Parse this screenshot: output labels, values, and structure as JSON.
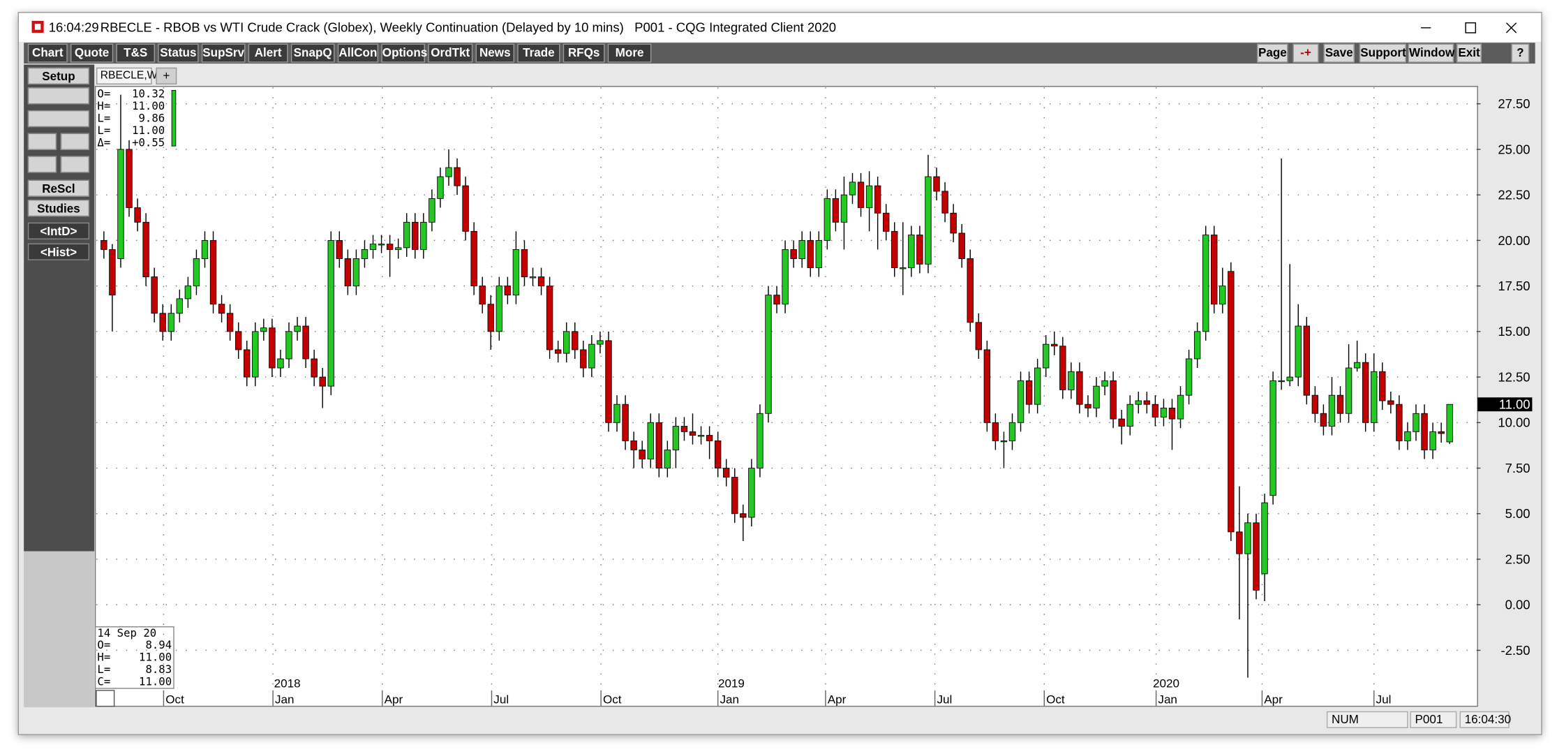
{
  "window": {
    "time": "16:04:29",
    "title": "RBECLE - RBOB vs WTI Crude Crack (Globex), Weekly Continuation (Delayed by 10 mins)   P001 - CQG Integrated Client 2020"
  },
  "toolbar": {
    "left": [
      "Chart",
      "Quote",
      "T&S",
      "Status",
      "SupSrv",
      "Alert",
      "SnapQ",
      "AllCon",
      "Options",
      "OrdTkt",
      "News",
      "Trade",
      "RFQs",
      "More"
    ],
    "right": [
      "Page",
      "-+",
      "Save",
      "Support",
      "Window",
      "Exit",
      "?"
    ]
  },
  "sidebar": [
    "Setup",
    "ReScl",
    "Studies",
    "<IntD>",
    "<Hist>"
  ],
  "tabs": [
    "RBECLE,W",
    "+"
  ],
  "info_top": [
    [
      "O=",
      "10.32"
    ],
    [
      "H=",
      "11.00"
    ],
    [
      "L=",
      "9.86"
    ],
    [
      "L=",
      "11.00"
    ],
    [
      "Δ=",
      "+0.55"
    ]
  ],
  "info_bottom": {
    "date": "14 Sep 20",
    "rows": [
      [
        "O=",
        "8.94"
      ],
      [
        "H=",
        "11.00"
      ],
      [
        "L=",
        "8.83"
      ],
      [
        "C=",
        "11.00"
      ]
    ]
  },
  "status": [
    "NUM",
    "P001",
    "16:04:30"
  ],
  "chart_data": {
    "type": "candlestick",
    "up_color": "#22c922",
    "down_color": "#c40000",
    "grid": true,
    "xlim": [
      -0.9,
      163.2
    ],
    "ylim": [
      -4.7,
      28.4
    ],
    "yticks": [
      {
        "value": 27.5,
        "label": "27.50"
      },
      {
        "value": 25,
        "label": "25.00"
      },
      {
        "value": 22.5,
        "label": "22.50"
      },
      {
        "value": 20,
        "label": "20.00"
      },
      {
        "value": 17.5,
        "label": "17.50"
      },
      {
        "value": 15,
        "label": "15.00"
      },
      {
        "value": 12.5,
        "label": "12.50"
      },
      {
        "value": 10,
        "label": "10.00"
      },
      {
        "value": 7.5,
        "label": "7.50"
      },
      {
        "value": 5,
        "label": "5.00"
      },
      {
        "value": 2.5,
        "label": "2.50"
      },
      {
        "value": 0,
        "label": "0.00"
      },
      {
        "value": -2.5,
        "label": "-2.50"
      }
    ],
    "xticks": [
      {
        "value": 7.1,
        "label": "Oct"
      },
      {
        "value": 20.1,
        "label": "Jan"
      },
      {
        "value": 33.1,
        "label": "Apr"
      },
      {
        "value": 46.1,
        "label": "Jul"
      },
      {
        "value": 59.1,
        "label": "Oct"
      },
      {
        "value": 73,
        "label": "Jan"
      },
      {
        "value": 85.8,
        "label": "Apr"
      },
      {
        "value": 98.8,
        "label": "Jul"
      },
      {
        "value": 111.8,
        "label": "Oct"
      },
      {
        "value": 125.1,
        "label": "Jan"
      },
      {
        "value": 137.7,
        "label": "Apr"
      },
      {
        "value": 151,
        "label": "Jul"
      }
    ],
    "year_labels": [
      {
        "value": 21.8,
        "label": "2018"
      },
      {
        "value": 74.6,
        "label": "2019"
      },
      {
        "value": 126.3,
        "label": "2020"
      }
    ],
    "last_price": {
      "value": 11,
      "label": "11.00"
    },
    "open": [
      20,
      19.5,
      19,
      25,
      21.8,
      21,
      18,
      16,
      15,
      16,
      16.8,
      17.5,
      19,
      20,
      16.5,
      16,
      15,
      14,
      12.5,
      15,
      15.2,
      13,
      13.5,
      15,
      15.3,
      13.5,
      12.5,
      12,
      20,
      19,
      17.5,
      19,
      19.5,
      19.8,
      19.8,
      19.5,
      19.6,
      21,
      19.5,
      21,
      22.3,
      23.5,
      24,
      23,
      20.5,
      17.5,
      16.5,
      15,
      17.5,
      17,
      19.5,
      18,
      18,
      17.5,
      14,
      13.8,
      15,
      14,
      13,
      14.3,
      14.5,
      10,
      11,
      9,
      8.5,
      8,
      10,
      7.5,
      8.5,
      9.8,
      9.5,
      9.3,
      9.3,
      9,
      7.5,
      7,
      5,
      4.8,
      7.5,
      10.5,
      17,
      16.5,
      19.5,
      19,
      20,
      18.5,
      20,
      22.3,
      21,
      22.5,
      23.2,
      21.8,
      23,
      21.5,
      20.5,
      18.5,
      18.5,
      20.3,
      18.7,
      23.5,
      22.7,
      21.5,
      20.4,
      19,
      15.5,
      14,
      10,
      9,
      9,
      10,
      12.3,
      11,
      13,
      14.3,
      14.2,
      11.8,
      12.8,
      11,
      10.8,
      12,
      12.3,
      10.2,
      9.8,
      11,
      11.2,
      11,
      10.3,
      10.8,
      10.2,
      11.5,
      13.5,
      15,
      20.3,
      16.5,
      18.3,
      4,
      2.8,
      4.5,
      1.7,
      6,
      12.3,
      12.3,
      12.5,
      15.3,
      11.5,
      10.5,
      9.8,
      11.5,
      10.5,
      13,
      13.3,
      10,
      12.8,
      11.2,
      11,
      9,
      9.5,
      10.5,
      8.5,
      9.5,
      8.94
    ],
    "high": [
      20.5,
      19.8,
      28,
      25.5,
      22.3,
      21.5,
      18.5,
      16.5,
      16.5,
      17.3,
      18,
      19.5,
      20.5,
      20.5,
      17,
      16.5,
      15.5,
      14.5,
      15.5,
      15.7,
      15.7,
      14,
      15.5,
      15.8,
      15.8,
      14,
      13,
      20.5,
      20.5,
      19.5,
      19.5,
      20,
      20.3,
      20.3,
      20.3,
      20.1,
      21.5,
      21.5,
      21.5,
      22.8,
      24,
      25,
      24.5,
      23.5,
      21,
      18,
      17,
      18,
      18,
      20.5,
      20,
      18.5,
      18.5,
      18,
      14.5,
      15.5,
      15.5,
      14.5,
      14.8,
      15,
      15,
      11.5,
      11.5,
      9.5,
      9,
      10.5,
      10.5,
      9,
      10.3,
      10.3,
      10.5,
      9.8,
      9.8,
      9.5,
      8,
      7.5,
      5.5,
      8,
      11,
      17.5,
      17.5,
      20,
      20,
      20.5,
      20.5,
      20.5,
      22.8,
      22.8,
      23.5,
      23.7,
      23.7,
      23.8,
      23.5,
      22,
      21,
      21,
      20.8,
      20.8,
      24.7,
      24,
      23.2,
      22,
      20.9,
      19.5,
      16,
      14.5,
      10.5,
      9.5,
      10.5,
      12.8,
      12.8,
      13.5,
      14.8,
      15,
      14.7,
      13.3,
      13.3,
      11.5,
      12.5,
      12.8,
      12.8,
      10.7,
      11.5,
      11.7,
      11.7,
      11.5,
      11.3,
      11.3,
      12,
      14,
      15.5,
      20.8,
      20.8,
      18.5,
      18.8,
      6.5,
      5,
      5,
      6.1,
      12.8,
      24.5,
      18.7,
      16.5,
      15.8,
      12,
      11,
      12.5,
      12,
      14.3,
      14.5,
      13.8,
      13.8,
      13.3,
      11.7,
      11.5,
      10,
      11,
      11,
      10,
      10,
      11
    ],
    "low": [
      19,
      15,
      18.5,
      21.3,
      20.5,
      17.5,
      15.5,
      14.5,
      14.5,
      15.5,
      16.3,
      17,
      18.5,
      16,
      15.5,
      14.5,
      13.5,
      12,
      12,
      14.5,
      12.5,
      12.5,
      13,
      14.5,
      13,
      12,
      10.8,
      11.5,
      18.5,
      17,
      17,
      18.5,
      19,
      19.3,
      18,
      19,
      19.1,
      19,
      19,
      20.5,
      21.8,
      23,
      22.5,
      20,
      17,
      16,
      14,
      14.5,
      16.5,
      16.5,
      17.5,
      17.5,
      17,
      13.5,
      13.3,
      13.3,
      13.5,
      12.5,
      12.5,
      13.8,
      9.5,
      9.5,
      8.5,
      7.5,
      7.5,
      7.5,
      7,
      7,
      7.5,
      9,
      8.8,
      8.8,
      8,
      7,
      6.5,
      4.5,
      3.5,
      4.3,
      7,
      10,
      16,
      16,
      18.5,
      18.5,
      18,
      18,
      19.5,
      20.5,
      19.5,
      22,
      21.3,
      20.5,
      19.5,
      20,
      18,
      17,
      18,
      18.2,
      18.2,
      22.2,
      21,
      19.9,
      18.5,
      15,
      13.5,
      9.5,
      8.5,
      7.5,
      8.5,
      9.5,
      10.5,
      10.5,
      12.5,
      13.7,
      11.3,
      11.3,
      10.5,
      10.3,
      10.3,
      11.5,
      9.7,
      8.8,
      9.3,
      10.5,
      10.5,
      9.8,
      9.8,
      8.5,
      9.7,
      11,
      13,
      14.5,
      16,
      16,
      3.5,
      -0.8,
      -4,
      0.3,
      0.2,
      5.5,
      11.8,
      12,
      12,
      11,
      10,
      9.3,
      9.3,
      10,
      10,
      12.8,
      9.5,
      9.5,
      10.7,
      10.5,
      8.5,
      8.5,
      9,
      8,
      8,
      8.9,
      8.83
    ],
    "close": [
      19.5,
      17,
      25,
      21.8,
      21,
      18,
      16,
      15,
      16,
      16.8,
      17.5,
      19,
      20,
      16.5,
      16,
      15,
      14,
      12.5,
      15,
      15.2,
      13,
      13.5,
      15,
      15.3,
      13.5,
      12.5,
      12,
      20,
      19,
      17.5,
      19,
      19.5,
      19.8,
      19.8,
      19.5,
      19.6,
      21,
      19.5,
      21,
      22.3,
      23.5,
      24,
      23,
      20.5,
      17.5,
      16.5,
      15,
      17.5,
      17,
      19.5,
      18,
      18,
      17.5,
      14,
      13.8,
      15,
      14,
      13,
      14.3,
      14.5,
      10,
      11,
      9,
      8.5,
      8,
      10,
      7.5,
      8.5,
      9.8,
      9.5,
      9.3,
      9.3,
      9,
      7.5,
      7,
      5,
      4.8,
      7.5,
      10.5,
      17,
      16.5,
      19.5,
      19,
      20,
      18.5,
      20,
      22.3,
      21,
      22.5,
      23.2,
      21.8,
      23,
      21.5,
      20.5,
      18.5,
      18.5,
      20.3,
      18.7,
      23.5,
      22.7,
      21.5,
      20.4,
      19,
      15.5,
      14,
      10,
      9,
      9,
      10,
      12.3,
      11,
      13,
      14.3,
      14.2,
      11.8,
      12.8,
      11,
      10.8,
      12,
      12.3,
      10.2,
      9.8,
      11,
      11.2,
      11,
      10.3,
      10.8,
      10.2,
      11.5,
      13.5,
      15,
      20.3,
      16.5,
      17.5,
      4,
      2.8,
      4.5,
      0.8,
      5.6,
      12.3,
      12.3,
      12.5,
      15.3,
      11.5,
      10.5,
      9.8,
      11.5,
      10.5,
      13,
      13.3,
      10,
      12.8,
      11.2,
      11,
      9,
      9.5,
      10.5,
      8.5,
      9.5,
      9.4,
      11
    ]
  }
}
